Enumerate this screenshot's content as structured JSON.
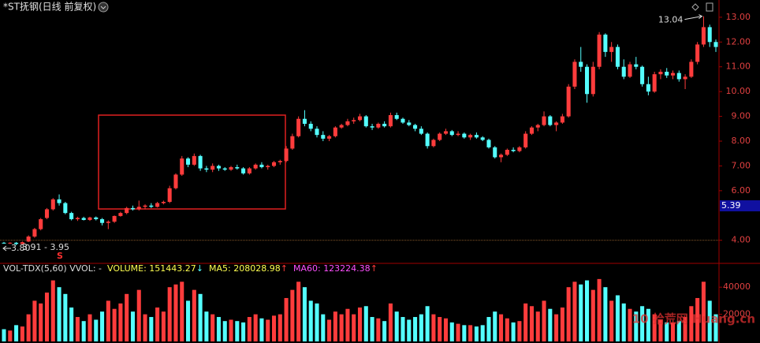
{
  "chart_data": {
    "type": "candlestick",
    "title": "*ST抚钢(日线 前复权)",
    "up_color": "#ff3c3c",
    "down_color": "#54ffff",
    "ylim": [
      3.1,
      13.6
    ],
    "yticks": [
      {
        "value": 4,
        "label": "4.00"
      },
      {
        "value": 6,
        "label": "6.00"
      },
      {
        "value": 7,
        "label": "7.00"
      },
      {
        "value": 8,
        "label": "8.00"
      },
      {
        "value": 9,
        "label": "9.00"
      },
      {
        "value": 10,
        "label": "10.00"
      },
      {
        "value": 11,
        "label": "11.00"
      },
      {
        "value": 12,
        "label": "12.00"
      },
      {
        "value": 13,
        "label": "13.00"
      }
    ],
    "hline": 4,
    "cursor_price": 5.39,
    "high_label": 13.04,
    "low_label": {
      "value": 3.8,
      "label": "3.80"
    },
    "range_label": "3.91 - 3.95",
    "signal": "S",
    "ohlc": [
      [
        3.9,
        3.93,
        3.86,
        3.88
      ],
      [
        3.88,
        3.92,
        3.85,
        3.9
      ],
      [
        3.9,
        3.93,
        3.8,
        3.85
      ],
      [
        3.85,
        3.95,
        3.84,
        3.92
      ],
      [
        3.95,
        4.2,
        3.93,
        4.15
      ],
      [
        4.15,
        4.5,
        4.1,
        4.45
      ],
      [
        4.45,
        4.9,
        4.4,
        4.85
      ],
      [
        4.9,
        5.3,
        4.85,
        5.25
      ],
      [
        5.25,
        5.7,
        5.2,
        5.65
      ],
      [
        5.65,
        5.85,
        5.4,
        5.5
      ],
      [
        5.5,
        5.55,
        5.05,
        5.1
      ],
      [
        5.1,
        5.15,
        4.8,
        4.85
      ],
      [
        4.85,
        4.95,
        4.78,
        4.9
      ],
      [
        4.9,
        4.95,
        4.8,
        4.82
      ],
      [
        4.82,
        4.95,
        4.78,
        4.92
      ],
      [
        4.92,
        4.96,
        4.8,
        4.85
      ],
      [
        4.85,
        4.9,
        4.6,
        4.7
      ],
      [
        4.7,
        4.8,
        4.45,
        4.75
      ],
      [
        4.75,
        5.0,
        4.7,
        4.98
      ],
      [
        4.98,
        5.15,
        4.95,
        5.1
      ],
      [
        5.1,
        5.35,
        5.05,
        5.3
      ],
      [
        5.3,
        5.4,
        5.2,
        5.25
      ],
      [
        5.25,
        5.6,
        5.2,
        5.35
      ],
      [
        5.35,
        5.45,
        5.25,
        5.4
      ],
      [
        5.4,
        5.5,
        5.3,
        5.35
      ],
      [
        5.35,
        5.55,
        5.32,
        5.5
      ],
      [
        5.5,
        5.6,
        5.45,
        5.55
      ],
      [
        5.55,
        6.2,
        5.5,
        6.1
      ],
      [
        6.1,
        6.7,
        6.05,
        6.65
      ],
      [
        6.65,
        7.4,
        6.6,
        7.3
      ],
      [
        7.3,
        7.35,
        6.95,
        7.05
      ],
      [
        7.05,
        7.5,
        7.0,
        7.4
      ],
      [
        7.4,
        7.45,
        6.8,
        6.9
      ],
      [
        6.9,
        7.0,
        6.75,
        6.85
      ],
      [
        6.85,
        7.1,
        6.75,
        7.0
      ],
      [
        7.0,
        7.05,
        6.8,
        6.9
      ],
      [
        6.9,
        6.95,
        6.8,
        6.85
      ],
      [
        6.85,
        7.0,
        6.8,
        6.95
      ],
      [
        6.95,
        7.05,
        6.85,
        6.9
      ],
      [
        6.9,
        6.95,
        6.65,
        6.7
      ],
      [
        6.7,
        6.95,
        6.65,
        6.9
      ],
      [
        6.9,
        7.1,
        6.85,
        7.05
      ],
      [
        7.05,
        7.15,
        6.9,
        6.95
      ],
      [
        6.95,
        7.05,
        6.85,
        7.0
      ],
      [
        7.0,
        7.2,
        6.95,
        7.15
      ],
      [
        7.15,
        7.25,
        7.05,
        7.2
      ],
      [
        7.2,
        7.8,
        7.15,
        7.7
      ],
      [
        7.7,
        8.3,
        7.65,
        8.2
      ],
      [
        8.2,
        9.0,
        8.15,
        8.9
      ],
      [
        8.9,
        9.25,
        8.6,
        8.7
      ],
      [
        8.7,
        8.8,
        8.4,
        8.5
      ],
      [
        8.5,
        8.6,
        8.15,
        8.25
      ],
      [
        8.25,
        8.4,
        8.0,
        8.1
      ],
      [
        8.1,
        8.25,
        8.0,
        8.2
      ],
      [
        8.2,
        8.6,
        8.15,
        8.55
      ],
      [
        8.55,
        8.7,
        8.5,
        8.65
      ],
      [
        8.65,
        8.9,
        8.6,
        8.8
      ],
      [
        8.8,
        8.95,
        8.7,
        8.85
      ],
      [
        8.85,
        9.1,
        8.8,
        9.0
      ],
      [
        9.0,
        9.05,
        8.55,
        8.6
      ],
      [
        8.6,
        8.7,
        8.45,
        8.55
      ],
      [
        8.55,
        8.75,
        8.5,
        8.7
      ],
      [
        8.7,
        8.8,
        8.55,
        8.6
      ],
      [
        8.6,
        9.15,
        8.55,
        9.05
      ],
      [
        9.05,
        9.15,
        8.85,
        8.9
      ],
      [
        8.9,
        8.95,
        8.7,
        8.75
      ],
      [
        8.75,
        8.85,
        8.6,
        8.65
      ],
      [
        8.65,
        8.7,
        8.4,
        8.5
      ],
      [
        8.5,
        8.6,
        8.25,
        8.3
      ],
      [
        8.3,
        8.35,
        7.7,
        7.8
      ],
      [
        7.8,
        8.1,
        7.75,
        8.05
      ],
      [
        8.05,
        8.35,
        8.0,
        8.3
      ],
      [
        8.3,
        8.5,
        8.25,
        8.4
      ],
      [
        8.4,
        8.45,
        8.2,
        8.25
      ],
      [
        8.25,
        8.4,
        8.2,
        8.3
      ],
      [
        8.3,
        8.35,
        8.1,
        8.15
      ],
      [
        8.15,
        8.3,
        8.05,
        8.25
      ],
      [
        8.25,
        8.35,
        8.1,
        8.15
      ],
      [
        8.15,
        8.2,
        8.0,
        8.05
      ],
      [
        8.05,
        8.1,
        7.7,
        7.75
      ],
      [
        7.75,
        7.8,
        7.3,
        7.35
      ],
      [
        7.35,
        7.5,
        7.15,
        7.45
      ],
      [
        7.45,
        7.7,
        7.4,
        7.65
      ],
      [
        7.65,
        7.75,
        7.55,
        7.6
      ],
      [
        7.6,
        7.8,
        7.55,
        7.75
      ],
      [
        7.75,
        8.4,
        7.7,
        8.3
      ],
      [
        8.3,
        8.6,
        8.25,
        8.55
      ],
      [
        8.55,
        8.7,
        8.4,
        8.65
      ],
      [
        8.65,
        9.2,
        8.6,
        9.0
      ],
      [
        9.0,
        9.05,
        8.6,
        8.65
      ],
      [
        8.65,
        8.8,
        8.4,
        8.75
      ],
      [
        8.75,
        9.1,
        8.7,
        9.0
      ],
      [
        9.0,
        10.3,
        8.95,
        10.2
      ],
      [
        10.2,
        11.3,
        10.1,
        11.2
      ],
      [
        11.2,
        11.8,
        10.8,
        11.0
      ],
      [
        11.0,
        11.1,
        9.55,
        9.9
      ],
      [
        9.9,
        11.2,
        9.8,
        11.0
      ],
      [
        11.0,
        12.4,
        10.9,
        12.3
      ],
      [
        12.3,
        12.35,
        11.4,
        11.6
      ],
      [
        11.6,
        12.0,
        11.2,
        11.8
      ],
      [
        11.8,
        11.9,
        10.9,
        11.0
      ],
      [
        11.0,
        11.3,
        10.5,
        10.6
      ],
      [
        10.6,
        11.2,
        10.55,
        11.1
      ],
      [
        11.1,
        11.4,
        10.9,
        11.0
      ],
      [
        11.0,
        11.05,
        10.2,
        10.3
      ],
      [
        10.3,
        10.6,
        9.85,
        10.0
      ],
      [
        10.0,
        10.8,
        9.95,
        10.7
      ],
      [
        10.7,
        10.9,
        10.5,
        10.8
      ],
      [
        10.8,
        10.95,
        10.55,
        10.65
      ],
      [
        10.65,
        10.85,
        10.5,
        10.75
      ],
      [
        10.75,
        10.85,
        10.4,
        10.5
      ],
      [
        10.5,
        10.7,
        10.1,
        10.6
      ],
      [
        10.6,
        11.3,
        10.55,
        11.2
      ],
      [
        11.2,
        12.0,
        11.1,
        11.9
      ],
      [
        11.9,
        13.04,
        11.8,
        12.6
      ],
      [
        12.6,
        12.7,
        11.8,
        12.0
      ],
      [
        12.0,
        12.1,
        11.6,
        11.8
      ]
    ],
    "volume_panel": {
      "name": "VOL-TDX(5,60)",
      "vvol": "VVOL: -",
      "stats": [
        {
          "label": "VOLUME:",
          "value": 151443.27,
          "arrow": "↓",
          "color": "#ffff50",
          "arrow_color": "#54ffff"
        },
        {
          "label": "MA5:",
          "value": 208028.98,
          "arrow": "↑",
          "color": "#ffff50",
          "arrow_color": "#ff3c3c"
        },
        {
          "label": "MA60:",
          "value": 123224.38,
          "arrow": "↑",
          "color": "#ff50ff",
          "arrow_color": "#ff3c3c"
        }
      ],
      "ylim": [
        0,
        50000
      ],
      "yticks": [
        20000,
        40000
      ],
      "values": [
        9000,
        8000,
        12000,
        11000,
        20000,
        30000,
        28000,
        36000,
        45000,
        40000,
        35000,
        25000,
        18000,
        15000,
        20000,
        16000,
        22000,
        30000,
        24000,
        28000,
        35000,
        22000,
        38000,
        20000,
        18000,
        25000,
        22000,
        40000,
        42000,
        44000,
        30000,
        38000,
        35000,
        22000,
        20000,
        18000,
        15000,
        16000,
        15000,
        14000,
        18000,
        20000,
        17000,
        16000,
        19000,
        20000,
        32000,
        38000,
        44000,
        40000,
        30000,
        28000,
        20000,
        16000,
        22000,
        20000,
        24000,
        20000,
        25000,
        26000,
        18000,
        17000,
        15000,
        28000,
        22000,
        18000,
        16000,
        18000,
        20000,
        26000,
        20000,
        18000,
        17000,
        14000,
        13000,
        12000,
        12000,
        11000,
        12000,
        18000,
        22000,
        20000,
        17000,
        14000,
        15000,
        28000,
        26000,
        22000,
        30000,
        24000,
        20000,
        25000,
        40000,
        44000,
        42000,
        45000,
        38000,
        46000,
        40000,
        30000,
        34000,
        28000,
        24000,
        22000,
        26000,
        24000,
        20000,
        16000,
        14000,
        14000,
        15000,
        18000,
        26000,
        32000,
        44000,
        30000,
        20000
      ]
    },
    "watermark": "10 拾荒网 Huang.cn"
  }
}
